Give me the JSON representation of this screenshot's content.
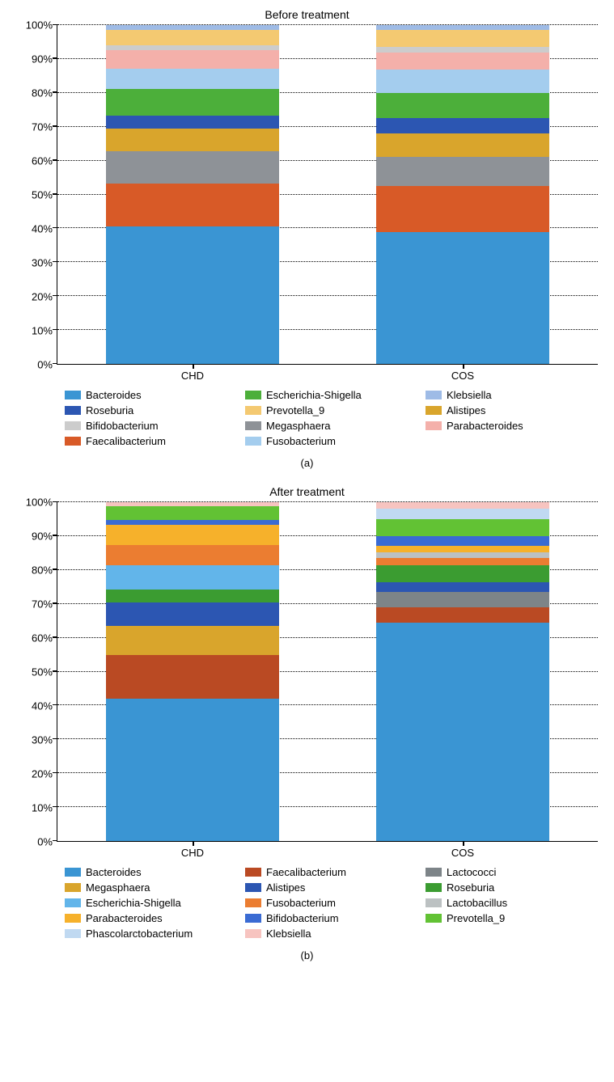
{
  "panels": [
    {
      "title": "Before treatment",
      "sublabel": "(a)",
      "ylim": [
        0,
        100
      ],
      "ytick_step": 10,
      "ytick_suffix": "%",
      "categories": [
        "CHD",
        "COS"
      ],
      "series": [
        {
          "name": "Bacteroides",
          "color": "#3a95d3",
          "values": [
            40.5,
            39.0
          ]
        },
        {
          "name": "Faecalibacterium",
          "color": "#d85a27",
          "values": [
            12.7,
            13.5
          ]
        },
        {
          "name": "Megasphaera",
          "color": "#8e9297",
          "values": [
            9.5,
            8.5
          ]
        },
        {
          "name": "Alistipes",
          "color": "#d9a52c",
          "values": [
            6.8,
            7.0
          ]
        },
        {
          "name": "Roseburia",
          "color": "#2c56b2",
          "values": [
            3.8,
            4.5
          ]
        },
        {
          "name": "Escherichia-Shigella",
          "color": "#4caf3a",
          "values": [
            7.8,
            7.5
          ]
        },
        {
          "name": "Fusobacterium",
          "color": "#a4cdee",
          "values": [
            6.0,
            7.0
          ]
        },
        {
          "name": "Parabacteroides",
          "color": "#f4b0aa",
          "values": [
            5.5,
            5.0
          ]
        },
        {
          "name": "Bifidobacterium",
          "color": "#cccccc",
          "values": [
            1.5,
            1.5
          ]
        },
        {
          "name": "Prevotella_9",
          "color": "#f4c971",
          "values": [
            4.5,
            5.0
          ]
        },
        {
          "name": "Klebsiella",
          "color": "#9ebbe6",
          "values": [
            1.4,
            1.5
          ]
        }
      ],
      "legend_order": [
        [
          "Bacteroides",
          "Escherichia-Shigella",
          "Klebsiella"
        ],
        [
          "Roseburia",
          "Prevotella_9",
          "Alistipes"
        ],
        [
          "Bifidobacterium",
          "Megasphaera",
          "Parabacteroides"
        ],
        [
          "Faecalibacterium",
          "Fusobacterium",
          ""
        ]
      ]
    },
    {
      "title": "After treatment",
      "sublabel": "(b)",
      "ylim": [
        0,
        100
      ],
      "ytick_step": 10,
      "ytick_suffix": "%",
      "categories": [
        "CHD",
        "COS"
      ],
      "series": [
        {
          "name": "Bacteroides",
          "color": "#3a95d3",
          "values": [
            42.0,
            64.5
          ]
        },
        {
          "name": "Faecalibacterium",
          "color": "#ba4a23",
          "values": [
            13.0,
            4.5
          ]
        },
        {
          "name": "Megasphaera",
          "color": "#d9a52c",
          "values": [
            8.5,
            0.0
          ]
        },
        {
          "name": "Lactococci",
          "color": "#7d8488",
          "values": [
            0.0,
            4.5
          ]
        },
        {
          "name": "Alistipes",
          "color": "#2c56b2",
          "values": [
            7.0,
            3.0
          ]
        },
        {
          "name": "Roseburia",
          "color": "#3b9c31",
          "values": [
            3.8,
            5.0
          ]
        },
        {
          "name": "Escherichia-Shigella",
          "color": "#62b5ea",
          "values": [
            7.0,
            0.0
          ]
        },
        {
          "name": "Fusobacterium",
          "color": "#eb7d31",
          "values": [
            6.0,
            2.0
          ]
        },
        {
          "name": "Lactobacillus",
          "color": "#bcc1c2",
          "values": [
            0.0,
            1.8
          ]
        },
        {
          "name": "Parabacteroides",
          "color": "#f6b12b",
          "values": [
            6.0,
            1.8
          ]
        },
        {
          "name": "Bifidobacterium",
          "color": "#3a6bd3",
          "values": [
            1.5,
            3.0
          ]
        },
        {
          "name": "Prevotella_9",
          "color": "#62c234",
          "values": [
            4.0,
            5.0
          ]
        },
        {
          "name": "Phascolarctobacterium",
          "color": "#c0d9f1",
          "values": [
            0.0,
            3.0
          ]
        },
        {
          "name": "Klebsiella",
          "color": "#f7c4c0",
          "values": [
            1.2,
            1.9
          ]
        }
      ],
      "legend_order": [
        [
          "Bacteroides",
          "Faecalibacterium",
          "Lactococci"
        ],
        [
          "Megasphaera",
          "Alistipes",
          "Roseburia"
        ],
        [
          "Escherichia-Shigella",
          "Fusobacterium",
          "Lactobacillus"
        ],
        [
          "Parabacteroides",
          "Bifidobacterium",
          "Prevotella_9"
        ],
        [
          "Phascolarctobacterium",
          "Klebsiella",
          ""
        ]
      ]
    }
  ]
}
